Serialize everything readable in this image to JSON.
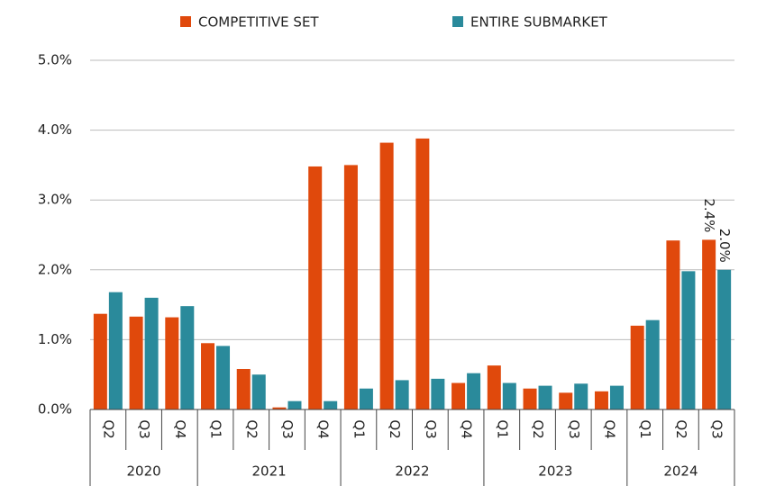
{
  "chart_data": {
    "type": "bar",
    "groups": [
      {
        "name": "2020",
        "categories": [
          "Q2",
          "Q3",
          "Q4"
        ]
      },
      {
        "name": "2021",
        "categories": [
          "Q1",
          "Q2",
          "Q3",
          "Q4"
        ]
      },
      {
        "name": "2022",
        "categories": [
          "Q1",
          "Q2",
          "Q3",
          "Q4"
        ]
      },
      {
        "name": "2023",
        "categories": [
          "Q1",
          "Q2",
          "Q3",
          "Q4"
        ]
      },
      {
        "name": "2024",
        "categories": [
          "Q1",
          "Q2",
          "Q3"
        ]
      }
    ],
    "series": [
      {
        "name": "COMPETITIVE SET",
        "color": "#e0490c",
        "values": [
          1.37,
          1.33,
          1.32,
          0.95,
          0.58,
          0.03,
          3.48,
          3.5,
          3.82,
          3.88,
          0.38,
          0.63,
          0.3,
          0.24,
          0.26,
          1.2,
          2.42,
          2.43
        ],
        "value_labels": [
          null,
          null,
          null,
          null,
          null,
          null,
          null,
          null,
          null,
          null,
          null,
          null,
          null,
          null,
          null,
          null,
          null,
          "2.4%"
        ]
      },
      {
        "name": "ENTIRE SUBMARKET",
        "color": "#2a8a9b",
        "values": [
          1.68,
          1.6,
          1.48,
          0.91,
          0.5,
          0.12,
          0.12,
          0.3,
          0.42,
          0.44,
          0.52,
          0.38,
          0.34,
          0.37,
          0.34,
          1.28,
          1.98,
          2.0
        ],
        "value_labels": [
          null,
          null,
          null,
          null,
          null,
          null,
          null,
          null,
          null,
          null,
          null,
          null,
          null,
          null,
          null,
          null,
          null,
          "2.0%"
        ]
      }
    ],
    "ylim": [
      0,
      5
    ],
    "yticks": [
      {
        "value": 0,
        "label": "0.0%"
      },
      {
        "value": 1,
        "label": "1.0%"
      },
      {
        "value": 2,
        "label": "2.0%"
      },
      {
        "value": 3,
        "label": "3.0%"
      },
      {
        "value": 4,
        "label": "4.0%"
      },
      {
        "value": 5,
        "label": "5.0%"
      }
    ],
    "grid": true,
    "legend": "top"
  }
}
